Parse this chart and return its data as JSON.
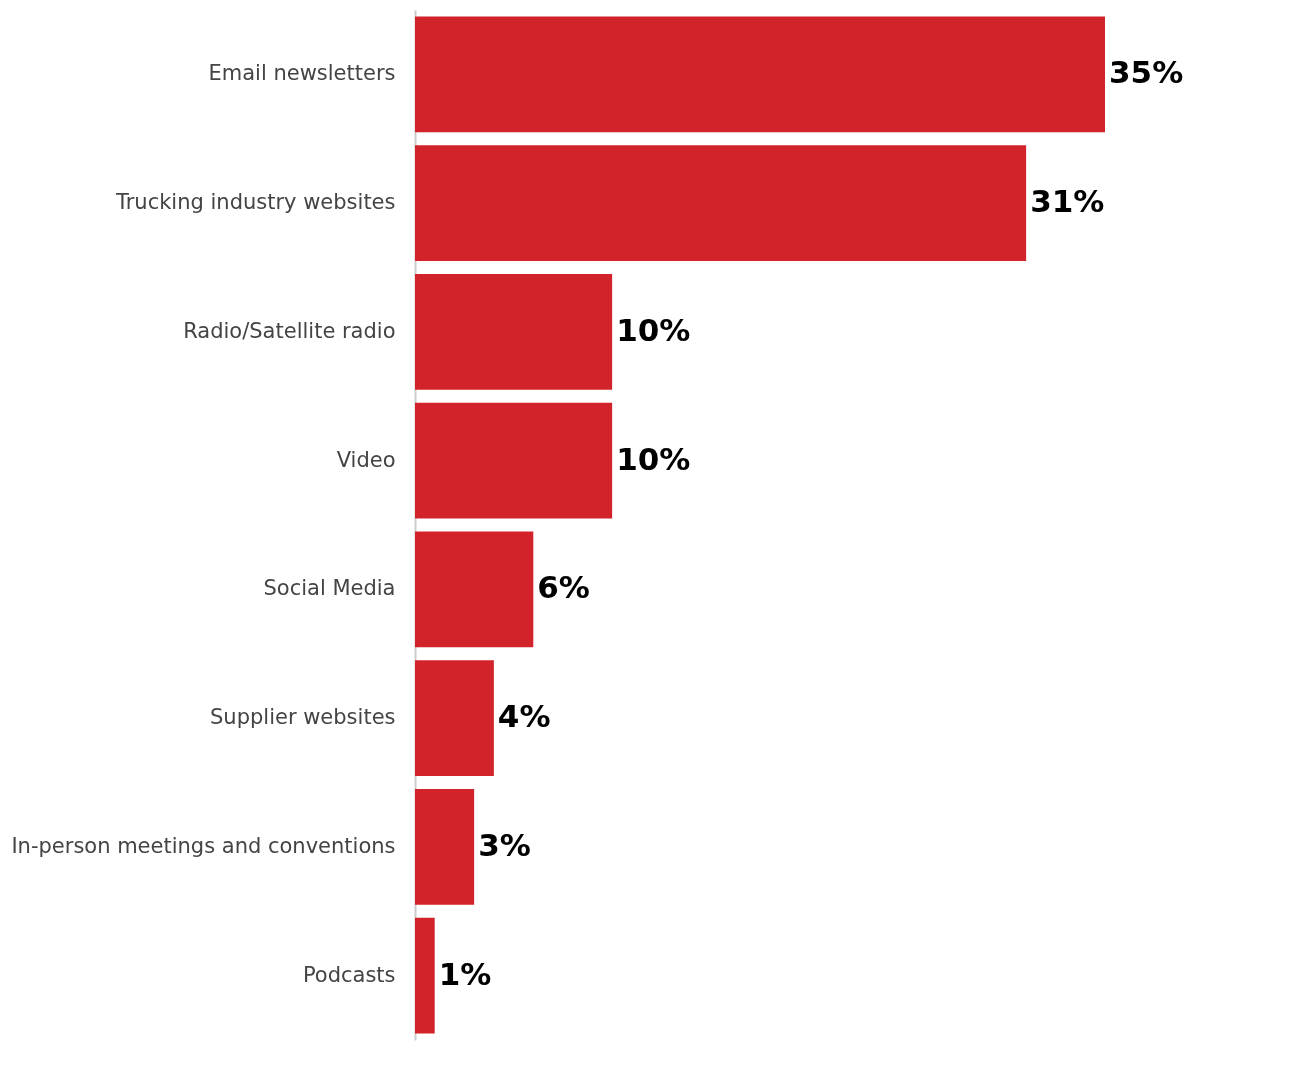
{
  "chart_data": {
    "type": "bar",
    "orientation": "horizontal",
    "categories": [
      "Email newsletters",
      "Trucking industry websites",
      "Radio/Satellite radio",
      "Video",
      "Social Media",
      "Supplier websites",
      "In-person meetings and conventions",
      "Podcasts"
    ],
    "values": [
      35,
      31,
      10,
      10,
      6,
      4,
      3,
      1
    ],
    "value_labels": [
      "35%",
      "31%",
      "10%",
      "10%",
      "6%",
      "4%",
      "3%",
      "1%"
    ],
    "color": "#d2232a",
    "grid": false
  }
}
